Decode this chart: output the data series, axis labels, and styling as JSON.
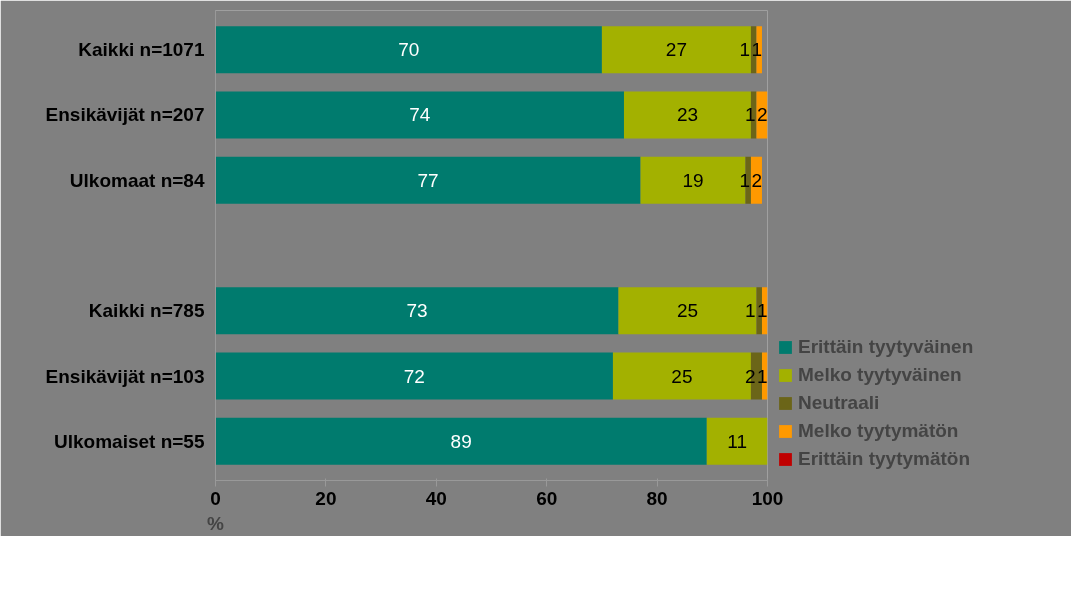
{
  "chart_data": {
    "type": "bar",
    "orientation": "horizontal",
    "stacked": true,
    "xlabel": "%",
    "categories": [
      "Kaikki n=1071",
      "Ensikävijät n=207",
      "Ulkomaat n=84",
      null,
      "Kaikki n=785",
      "Ensikävijät n=103",
      "Ulkomaiset n=55"
    ],
    "series": [
      {
        "name": "Erittäin tyytyväinen",
        "color": "#007b6e",
        "values": [
          70,
          74,
          77,
          null,
          73,
          72,
          89
        ],
        "value_labels": [
          "70",
          "74",
          "77",
          null,
          "73",
          "72",
          "89"
        ]
      },
      {
        "name": "Melko tyytyväinen",
        "color": "#a3b100",
        "values": [
          27,
          23,
          19,
          null,
          25,
          25,
          11
        ],
        "value_labels": [
          "27",
          "23",
          "19",
          null,
          "25",
          "25",
          "11"
        ]
      },
      {
        "name": "Neutraali",
        "color": "#6b6518",
        "values": [
          1,
          1,
          1,
          null,
          1,
          2,
          0
        ],
        "value_labels": [
          "1",
          "1",
          "1",
          null,
          "1",
          "2",
          null
        ]
      },
      {
        "name": "Melko tyytymätön",
        "color": "#ff9900",
        "values": [
          1,
          2,
          2,
          null,
          1,
          1,
          0
        ],
        "value_labels": [
          "1",
          "2",
          "2",
          null,
          "1",
          "1",
          null
        ]
      },
      {
        "name": "Erittäin tyytymätön",
        "color": "#c00000",
        "values": [
          0,
          0,
          0,
          null,
          0,
          0,
          0
        ],
        "value_labels": [
          null,
          null,
          null,
          null,
          null,
          null,
          null
        ]
      }
    ],
    "xlim": [
      0,
      100
    ],
    "xticks": [
      0,
      20,
      40,
      60,
      80,
      100
    ],
    "grid": false,
    "legend": "right"
  }
}
